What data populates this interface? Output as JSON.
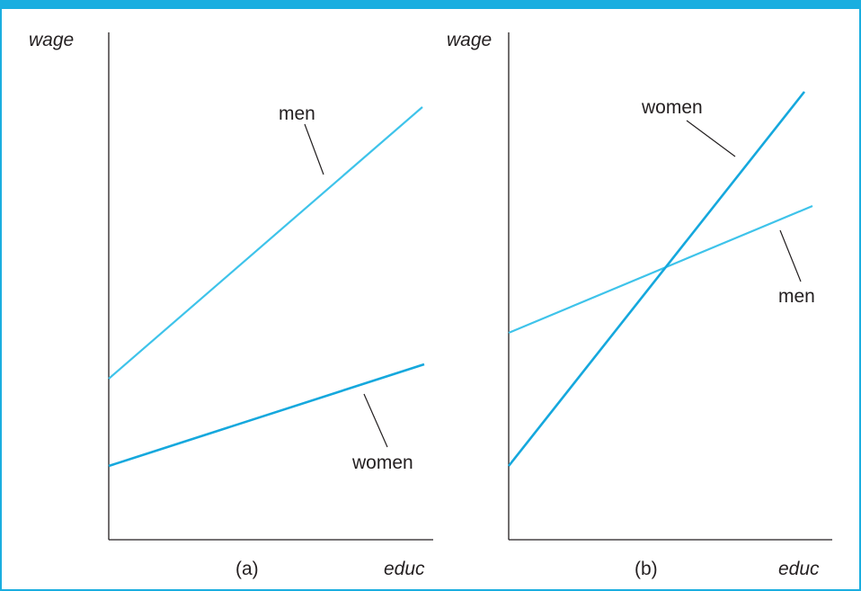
{
  "colors": {
    "frame": "#1aaee0",
    "men_line": "#3ec3ea",
    "women_line": "#15a8dd",
    "axis": "#231f20"
  },
  "panels": [
    {
      "caption": "(a)",
      "y_axis_label": "wage",
      "x_axis_label": "educ",
      "lines": [
        {
          "label": "men",
          "color": "#3ec3ea"
        },
        {
          "label": "women",
          "color": "#15a8dd"
        }
      ]
    },
    {
      "caption": "(b)",
      "y_axis_label": "wage",
      "x_axis_label": "educ",
      "lines": [
        {
          "label": "women",
          "color": "#15a8dd"
        },
        {
          "label": "men",
          "color": "#3ec3ea"
        }
      ]
    }
  ]
}
